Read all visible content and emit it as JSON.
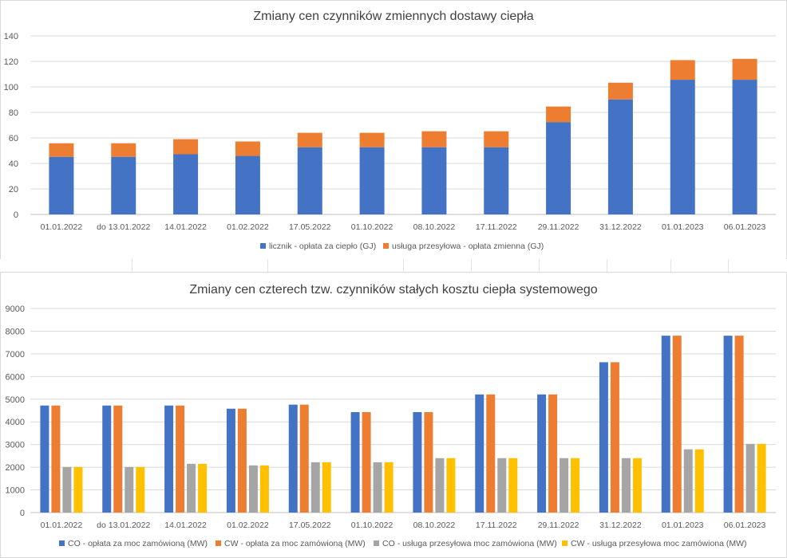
{
  "chart_data": [
    {
      "type": "bar",
      "stacked": true,
      "title": "Zmiany cen czynników zmiennych dostawy ciepła",
      "categories": [
        "01.01.2022",
        "do 13.01.2022",
        "14.01.2022",
        "01.02.2022",
        "17.05.2022",
        "01.10.2022",
        "08.10.2022",
        "17.11.2022",
        "29.11.2022",
        "31.12.2022",
        "01.01.2023",
        "06.01.2023"
      ],
      "series": [
        {
          "name": "licznik - opłata za ciepło (GJ)",
          "color": "#4472C4",
          "values": [
            45.2,
            45.2,
            47.2,
            45.9,
            52.7,
            52.7,
            52.7,
            52.7,
            72.4,
            90.2,
            105.6,
            105.6
          ]
        },
        {
          "name": "usługa przesyłowa - opłata zmienna (GJ)",
          "color": "#ED7D31",
          "values": [
            10.6,
            10.6,
            11.8,
            11.3,
            11.3,
            11.3,
            12.5,
            12.5,
            12.2,
            13.1,
            15.4,
            16.4
          ]
        }
      ],
      "yticks": [
        0,
        20,
        40,
        60,
        80,
        100,
        120,
        140
      ],
      "ylim": [
        0,
        140
      ],
      "grid": true,
      "legend": "bottom"
    },
    {
      "type": "bar",
      "stacked": false,
      "title": "Zmiany cen czterech tzw. czynników stałych kosztu ciepła systemowego",
      "categories": [
        "01.01.2022",
        "do 13.01.2022",
        "14.01.2022",
        "01.02.2022",
        "17.05.2022",
        "01.10.2022",
        "08.10.2022",
        "17.11.2022",
        "29.11.2022",
        "31.12.2022",
        "01.01.2023",
        "06.01.2023"
      ],
      "series": [
        {
          "name": "CO - opłata za moc zamówioną (MW)",
          "color": "#4472C4",
          "values": [
            4720,
            4720,
            4720,
            4580,
            4760,
            4430,
            4430,
            5210,
            5210,
            6630,
            7800,
            7800
          ]
        },
        {
          "name": "CW - opłata za moc zamówioną (MW)",
          "color": "#ED7D31",
          "values": [
            4720,
            4720,
            4720,
            4580,
            4760,
            4430,
            4430,
            5210,
            5210,
            6630,
            7800,
            7800
          ]
        },
        {
          "name": "CO - usługa przesyłowa moc zamówiona (MW)",
          "color": "#A5A5A5",
          "values": [
            2010,
            2010,
            2150,
            2080,
            2220,
            2220,
            2400,
            2400,
            2400,
            2400,
            2790,
            3030
          ]
        },
        {
          "name": "CW - usługa przesyłowa moc zamówiona (MW)",
          "color": "#FFC000",
          "values": [
            2010,
            2010,
            2150,
            2080,
            2220,
            2220,
            2400,
            2400,
            2400,
            2400,
            2790,
            3030
          ]
        }
      ],
      "yticks": [
        0,
        1000,
        2000,
        3000,
        4000,
        5000,
        6000,
        7000,
        8000,
        9000
      ],
      "ylim": [
        0,
        9000
      ],
      "grid": true,
      "legend": "bottom"
    }
  ]
}
